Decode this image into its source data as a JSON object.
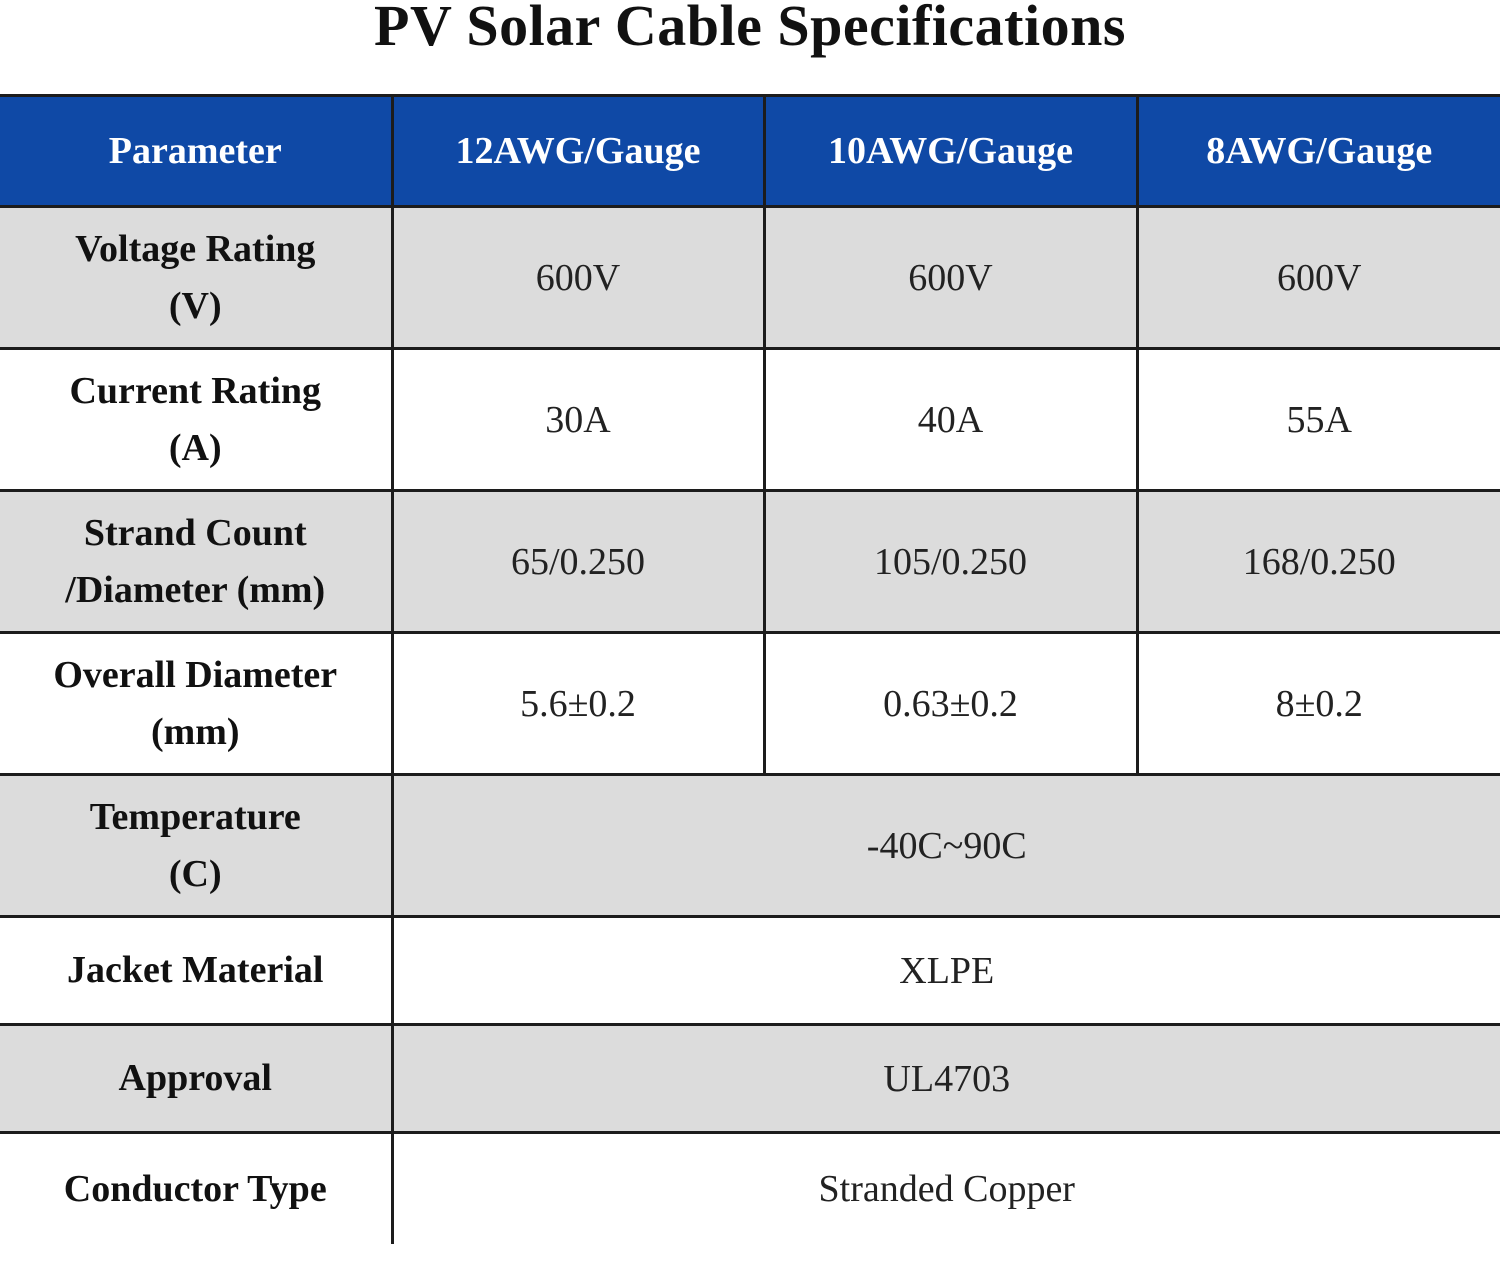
{
  "title": "PV Solar Cable Specifications",
  "header": {
    "parameter": "Parameter",
    "gauges": [
      "12AWG/Gauge",
      "10AWG/Gauge",
      "8AWG/Gauge"
    ]
  },
  "rows": {
    "voltage": {
      "label_line1": "Voltage Rating",
      "label_line2": "(V)",
      "values": [
        "600V",
        "600V",
        "600V"
      ]
    },
    "current": {
      "label_line1": "Current Rating",
      "label_line2": "(A)",
      "values": [
        "30A",
        "40A",
        "55A"
      ]
    },
    "strand": {
      "label_line1": "Strand Count",
      "label_line2": "/Diameter (mm)",
      "values": [
        "65/0.250",
        "105/0.250",
        "168/0.250"
      ]
    },
    "diameter": {
      "label_line1": "Overall Diameter",
      "label_line2": "(mm)",
      "values": [
        "5.6±0.2",
        "0.63±0.2",
        "8±0.2"
      ]
    },
    "temperature": {
      "label_line1": "Temperature",
      "label_line2": "(C)",
      "value": "-40C~90C"
    },
    "jacket": {
      "label": "Jacket Material",
      "value": "XLPE"
    },
    "approval": {
      "label": "Approval",
      "value": "UL4703"
    },
    "conductor": {
      "label": "Conductor Type",
      "value": "Stranded Copper"
    }
  },
  "colors": {
    "header_bg": "#0f49a6",
    "header_text": "#ffffff",
    "row_gray": "#dcdcdc",
    "row_white": "#ffffff",
    "border": "#1c1c1c"
  }
}
